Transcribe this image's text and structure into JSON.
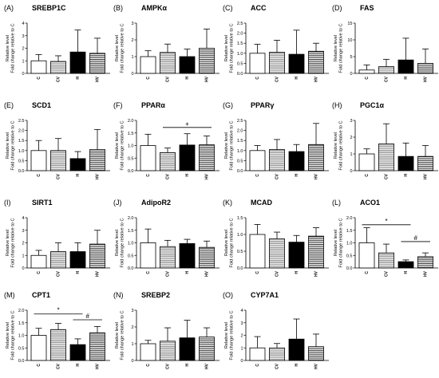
{
  "figure": {
    "y_axis_title_line1": "Relative level",
    "y_axis_title_line2": "Fold change relative to C",
    "patterns": {
      "C": {
        "fill": "#ffffff",
        "type": "solid"
      },
      "CV": {
        "fill": "#ffffff",
        "type": "dense-hlines",
        "line": "#9a9a9a"
      },
      "H": {
        "fill": "#000000",
        "type": "solid"
      },
      "HV": {
        "fill": "#ffffff",
        "type": "hlines",
        "line": "#222222"
      }
    }
  },
  "chart_data": [
    {
      "type": "bar",
      "panel": "(A)",
      "title": "SREBP1C",
      "categories": [
        "C",
        "CV",
        "H",
        "HV"
      ],
      "ylim": [
        0,
        4
      ],
      "yticks": [
        0,
        1,
        2,
        3,
        4
      ],
      "values": [
        1.0,
        0.95,
        1.7,
        1.6
      ],
      "errors": [
        0.5,
        0.45,
        1.75,
        1.2
      ],
      "annotations": []
    },
    {
      "type": "bar",
      "panel": "(B)",
      "title": "AMPKα",
      "categories": [
        "C",
        "CV",
        "H",
        "HV"
      ],
      "ylim": [
        0,
        3
      ],
      "yticks": [
        0,
        1,
        2,
        3
      ],
      "values": [
        1.0,
        1.25,
        1.0,
        1.5
      ],
      "errors": [
        0.35,
        0.5,
        0.45,
        1.15
      ],
      "annotations": []
    },
    {
      "type": "bar",
      "panel": "(C)",
      "title": "ACC",
      "categories": [
        "C",
        "CV",
        "H",
        "HV"
      ],
      "ylim": [
        0,
        2.5
      ],
      "yticks": [
        0.0,
        0.5,
        1.0,
        1.5,
        2.0,
        2.5
      ],
      "values": [
        1.0,
        1.05,
        0.95,
        1.1
      ],
      "errors": [
        0.45,
        0.6,
        1.2,
        0.4
      ],
      "annotations": []
    },
    {
      "type": "bar",
      "panel": "(D)",
      "title": "FAS",
      "categories": [
        "C",
        "CV",
        "H",
        "HV"
      ],
      "ylim": [
        0,
        15
      ],
      "yticks": [
        0,
        5,
        10,
        15
      ],
      "values": [
        1.0,
        2.0,
        4.0,
        3.0
      ],
      "errors": [
        1.5,
        2.2,
        6.5,
        4.3
      ],
      "annotations": []
    },
    {
      "type": "bar",
      "panel": "(E)",
      "title": "SCD1",
      "categories": [
        "C",
        "CV",
        "H",
        "HV"
      ],
      "ylim": [
        0,
        2.5
      ],
      "yticks": [
        0.0,
        0.5,
        1.0,
        1.5,
        2.0,
        2.5
      ],
      "values": [
        1.0,
        1.0,
        0.6,
        1.05
      ],
      "errors": [
        0.5,
        0.6,
        0.35,
        1.0
      ],
      "annotations": []
    },
    {
      "type": "bar",
      "panel": "(F)",
      "title": "PPARα",
      "categories": [
        "C",
        "CV",
        "H",
        "HV"
      ],
      "ylim": [
        0,
        2.0
      ],
      "yticks": [
        0.0,
        0.5,
        1.0,
        1.5,
        2.0
      ],
      "values": [
        1.0,
        0.72,
        1.02,
        1.03
      ],
      "errors": [
        0.45,
        0.18,
        0.45,
        0.35
      ],
      "annotations": [
        {
          "text": "+",
          "from": 1,
          "to": 3,
          "y": 1.72
        }
      ]
    },
    {
      "type": "bar",
      "panel": "(G)",
      "title": "PPARγ",
      "categories": [
        "C",
        "CV",
        "H",
        "HV"
      ],
      "ylim": [
        0,
        2.5
      ],
      "yticks": [
        0.0,
        0.5,
        1.0,
        1.5,
        2.0,
        2.5
      ],
      "values": [
        1.0,
        1.05,
        0.95,
        1.3
      ],
      "errors": [
        0.25,
        0.5,
        0.35,
        1.05
      ],
      "annotations": []
    },
    {
      "type": "bar",
      "panel": "(H)",
      "title": "PGC1α",
      "categories": [
        "C",
        "CV",
        "H",
        "HV"
      ],
      "ylim": [
        0,
        3
      ],
      "yticks": [
        0,
        1,
        2,
        3
      ],
      "values": [
        1.0,
        1.6,
        0.85,
        0.85
      ],
      "errors": [
        0.3,
        1.2,
        0.8,
        0.65
      ],
      "annotations": []
    },
    {
      "type": "bar",
      "panel": "(I)",
      "title": "SIRT1",
      "categories": [
        "C",
        "CV",
        "H",
        "HV"
      ],
      "ylim": [
        0,
        4
      ],
      "yticks": [
        0,
        1,
        2,
        3,
        4
      ],
      "values": [
        1.0,
        1.3,
        1.3,
        1.9
      ],
      "errors": [
        0.4,
        0.7,
        0.7,
        1.1
      ],
      "annotations": []
    },
    {
      "type": "bar",
      "panel": "(J)",
      "title": "AdipoR2",
      "categories": [
        "C",
        "CV",
        "H",
        "HV"
      ],
      "ylim": [
        0,
        2.0
      ],
      "yticks": [
        0.0,
        0.5,
        1.0,
        1.5,
        2.0
      ],
      "values": [
        1.0,
        0.85,
        0.97,
        0.82
      ],
      "errors": [
        0.55,
        0.25,
        0.17,
        0.25
      ],
      "annotations": []
    },
    {
      "type": "bar",
      "panel": "(K)",
      "title": "MCAD",
      "categories": [
        "C",
        "CV",
        "H",
        "HV"
      ],
      "ylim": [
        0,
        1.5
      ],
      "yticks": [
        0.0,
        0.5,
        1.0,
        1.5
      ],
      "values": [
        1.0,
        0.87,
        0.77,
        0.95
      ],
      "errors": [
        0.3,
        0.2,
        0.2,
        0.25
      ],
      "annotations": []
    },
    {
      "type": "bar",
      "panel": "(L)",
      "title": "ACO1",
      "categories": [
        "C",
        "CV",
        "H",
        "HV"
      ],
      "ylim": [
        0,
        2.0
      ],
      "yticks": [
        0.0,
        0.5,
        1.0,
        1.5,
        2.0
      ],
      "values": [
        1.0,
        0.6,
        0.25,
        0.45
      ],
      "errors": [
        0.6,
        0.35,
        0.07,
        0.15
      ],
      "annotations": [
        {
          "text": "*",
          "from": 0,
          "to": 2,
          "y": 1.72
        },
        {
          "text": "#",
          "from": 2,
          "to": 3,
          "y": 1.05
        }
      ]
    },
    {
      "type": "bar",
      "panel": "(M)",
      "title": "CPT1",
      "categories": [
        "C",
        "CV",
        "H",
        "HV"
      ],
      "ylim": [
        0,
        2.0
      ],
      "yticks": [
        0.0,
        0.5,
        1.0,
        1.5,
        2.0
      ],
      "values": [
        1.0,
        1.23,
        0.63,
        1.1
      ],
      "errors": [
        0.28,
        0.25,
        0.23,
        0.25
      ],
      "annotations": [
        {
          "text": "*",
          "from": 0,
          "to": 2,
          "y": 1.85
        },
        {
          "text": "#",
          "from": 2,
          "to": 3,
          "y": 1.62
        }
      ]
    },
    {
      "type": "bar",
      "panel": "(N)",
      "title": "SREBP2",
      "categories": [
        "C",
        "CV",
        "H",
        "HV"
      ],
      "ylim": [
        0,
        3
      ],
      "yticks": [
        0,
        1,
        2,
        3
      ],
      "values": [
        1.0,
        1.15,
        1.35,
        1.4
      ],
      "errors": [
        0.2,
        0.8,
        1.05,
        0.55
      ],
      "annotations": []
    },
    {
      "type": "bar",
      "panel": "(O)",
      "title": "CYP7A1",
      "categories": [
        "C",
        "CV",
        "H",
        "HV"
      ],
      "ylim": [
        0,
        4
      ],
      "yticks": [
        0,
        1,
        2,
        3,
        4
      ],
      "values": [
        1.0,
        1.0,
        1.7,
        1.1
      ],
      "errors": [
        0.9,
        0.35,
        1.6,
        1.0
      ],
      "annotations": []
    }
  ]
}
